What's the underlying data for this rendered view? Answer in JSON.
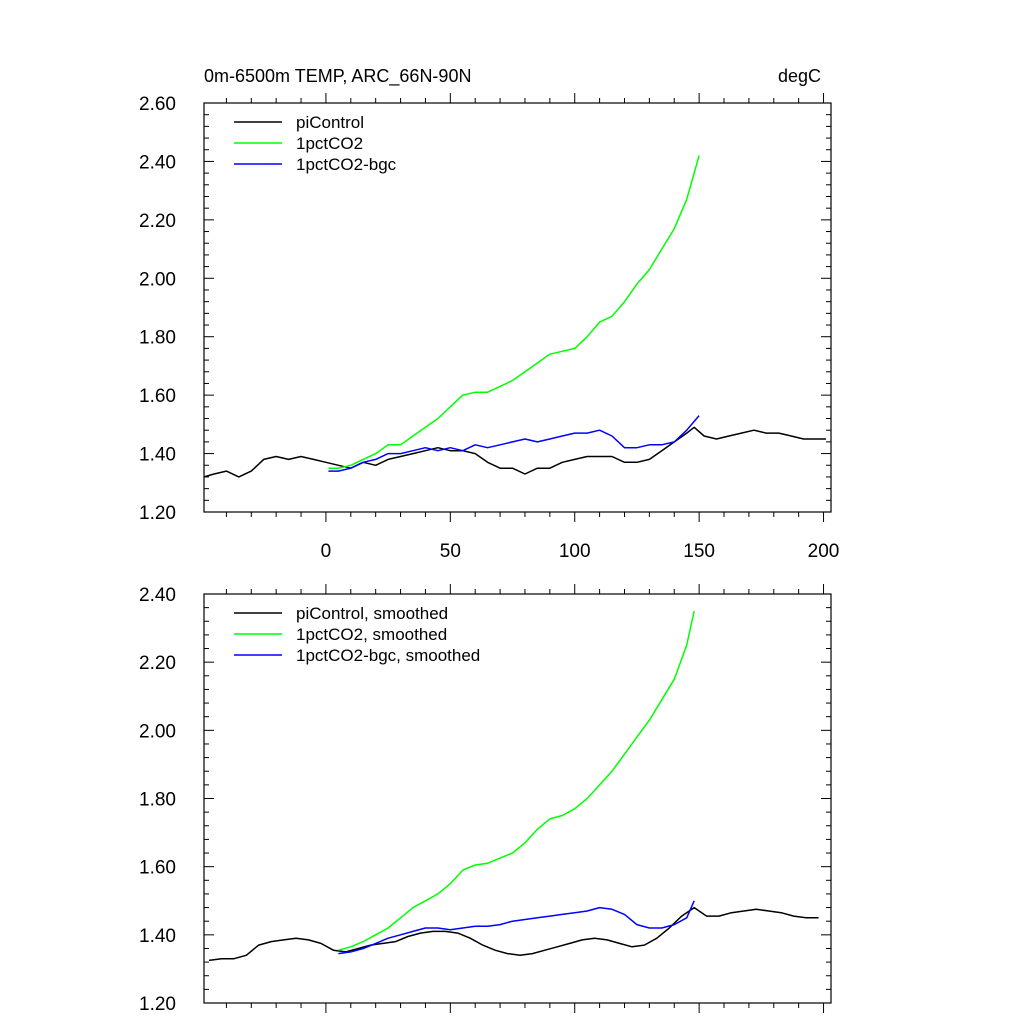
{
  "chart_data": [
    {
      "type": "line",
      "title": "0m-6500m TEMP, ARC_66N-90N",
      "units": "degC",
      "xlim": [
        -49,
        203
      ],
      "ylim": [
        1.2,
        2.6
      ],
      "x_ticks": [
        0,
        50,
        100,
        150,
        200
      ],
      "x_tick_labels": [
        "0",
        "50",
        "100",
        "150",
        "200"
      ],
      "y_ticks": [
        1.2,
        1.4,
        1.6,
        1.8,
        2.0,
        2.2,
        2.4,
        2.6
      ],
      "y_tick_labels": [
        "1.20",
        "1.40",
        "1.60",
        "1.80",
        "2.00",
        "2.20",
        "2.40",
        "2.60"
      ],
      "legend": "top-left",
      "series": [
        {
          "name": "piControl",
          "color": "#000000",
          "x": [
            -49,
            -45,
            -40,
            -35,
            -30,
            -25,
            -20,
            -15,
            -10,
            -5,
            0,
            5,
            10,
            15,
            20,
            25,
            30,
            35,
            40,
            45,
            50,
            55,
            60,
            65,
            70,
            75,
            80,
            85,
            90,
            95,
            100,
            105,
            110,
            115,
            120,
            125,
            130,
            135,
            140,
            145,
            148,
            152,
            157,
            162,
            167,
            172,
            177,
            182,
            187,
            192,
            197,
            201
          ],
          "y": [
            1.32,
            1.33,
            1.34,
            1.32,
            1.34,
            1.38,
            1.39,
            1.38,
            1.39,
            1.38,
            1.37,
            1.36,
            1.35,
            1.37,
            1.36,
            1.38,
            1.39,
            1.4,
            1.41,
            1.42,
            1.41,
            1.41,
            1.4,
            1.37,
            1.35,
            1.35,
            1.33,
            1.35,
            1.35,
            1.37,
            1.38,
            1.39,
            1.39,
            1.39,
            1.37,
            1.37,
            1.38,
            1.41,
            1.44,
            1.47,
            1.49,
            1.46,
            1.45,
            1.46,
            1.47,
            1.48,
            1.47,
            1.47,
            1.46,
            1.45,
            1.45,
            1.45
          ]
        },
        {
          "name": "1pctCO2",
          "color": "#00ff00",
          "x": [
            1,
            5,
            10,
            15,
            20,
            25,
            30,
            35,
            40,
            45,
            50,
            55,
            60,
            65,
            70,
            75,
            80,
            85,
            90,
            95,
            100,
            105,
            110,
            115,
            120,
            125,
            130,
            135,
            140,
            145,
            150
          ],
          "y": [
            1.35,
            1.35,
            1.36,
            1.38,
            1.4,
            1.43,
            1.43,
            1.46,
            1.49,
            1.52,
            1.56,
            1.6,
            1.61,
            1.61,
            1.63,
            1.65,
            1.68,
            1.71,
            1.74,
            1.75,
            1.76,
            1.8,
            1.85,
            1.87,
            1.92,
            1.98,
            2.03,
            2.1,
            2.17,
            2.27,
            2.42
          ]
        },
        {
          "name": "1pctCO2-bgc",
          "color": "#0000ff",
          "x": [
            1,
            5,
            10,
            15,
            20,
            25,
            30,
            35,
            40,
            45,
            50,
            55,
            60,
            65,
            70,
            75,
            80,
            85,
            90,
            95,
            100,
            105,
            110,
            115,
            120,
            125,
            130,
            135,
            140,
            145,
            150
          ],
          "y": [
            1.34,
            1.34,
            1.35,
            1.37,
            1.38,
            1.4,
            1.4,
            1.41,
            1.42,
            1.41,
            1.42,
            1.41,
            1.43,
            1.42,
            1.43,
            1.44,
            1.45,
            1.44,
            1.45,
            1.46,
            1.47,
            1.47,
            1.48,
            1.46,
            1.42,
            1.42,
            1.43,
            1.43,
            1.44,
            1.48,
            1.53
          ]
        }
      ]
    },
    {
      "type": "line",
      "title": "",
      "xlim": [
        -49,
        203
      ],
      "ylim": [
        1.2,
        2.4
      ],
      "x_ticks": [
        0,
        50,
        100,
        150,
        200
      ],
      "y_ticks": [
        1.2,
        1.4,
        1.6,
        1.8,
        2.0,
        2.2,
        2.4
      ],
      "y_tick_labels": [
        "1.20",
        "1.40",
        "1.60",
        "1.80",
        "2.00",
        "2.20",
        "2.40"
      ],
      "legend": "top-left",
      "series": [
        {
          "name": "piControl, smoothed",
          "color": "#000000",
          "x": [
            -47,
            -42,
            -37,
            -32,
            -27,
            -22,
            -17,
            -12,
            -7,
            -2,
            3,
            8,
            13,
            18,
            23,
            28,
            33,
            38,
            43,
            48,
            53,
            58,
            63,
            68,
            73,
            78,
            83,
            88,
            93,
            98,
            103,
            108,
            113,
            118,
            123,
            128,
            133,
            138,
            143,
            148,
            153,
            158,
            163,
            168,
            173,
            178,
            183,
            188,
            193,
            198
          ],
          "y": [
            1.325,
            1.33,
            1.33,
            1.34,
            1.37,
            1.38,
            1.385,
            1.39,
            1.385,
            1.375,
            1.355,
            1.35,
            1.36,
            1.37,
            1.375,
            1.38,
            1.395,
            1.405,
            1.41,
            1.41,
            1.405,
            1.39,
            1.37,
            1.355,
            1.345,
            1.34,
            1.345,
            1.355,
            1.365,
            1.375,
            1.385,
            1.39,
            1.385,
            1.375,
            1.365,
            1.37,
            1.39,
            1.42,
            1.455,
            1.48,
            1.455,
            1.455,
            1.465,
            1.47,
            1.475,
            1.47,
            1.465,
            1.455,
            1.45,
            1.45
          ]
        },
        {
          "name": "1pctCO2, smoothed",
          "color": "#00ff00",
          "x": [
            5,
            10,
            15,
            20,
            25,
            30,
            35,
            40,
            45,
            50,
            55,
            60,
            65,
            70,
            75,
            80,
            85,
            90,
            95,
            100,
            105,
            110,
            115,
            120,
            125,
            130,
            135,
            140,
            145,
            148
          ],
          "y": [
            1.355,
            1.365,
            1.38,
            1.4,
            1.42,
            1.45,
            1.48,
            1.5,
            1.52,
            1.55,
            1.59,
            1.605,
            1.61,
            1.625,
            1.64,
            1.67,
            1.71,
            1.74,
            1.75,
            1.77,
            1.8,
            1.84,
            1.88,
            1.93,
            1.98,
            2.03,
            2.09,
            2.15,
            2.25,
            2.35
          ]
        },
        {
          "name": "1pctCO2-bgc, smoothed",
          "color": "#0000ff",
          "x": [
            5,
            10,
            15,
            20,
            25,
            30,
            35,
            40,
            45,
            50,
            55,
            60,
            65,
            70,
            75,
            80,
            85,
            90,
            95,
            100,
            105,
            110,
            115,
            120,
            125,
            130,
            135,
            140,
            145,
            148
          ],
          "y": [
            1.345,
            1.35,
            1.36,
            1.375,
            1.39,
            1.4,
            1.41,
            1.42,
            1.42,
            1.415,
            1.42,
            1.425,
            1.425,
            1.43,
            1.44,
            1.445,
            1.45,
            1.455,
            1.46,
            1.465,
            1.47,
            1.48,
            1.475,
            1.46,
            1.43,
            1.42,
            1.42,
            1.43,
            1.45,
            1.5
          ]
        }
      ]
    }
  ]
}
